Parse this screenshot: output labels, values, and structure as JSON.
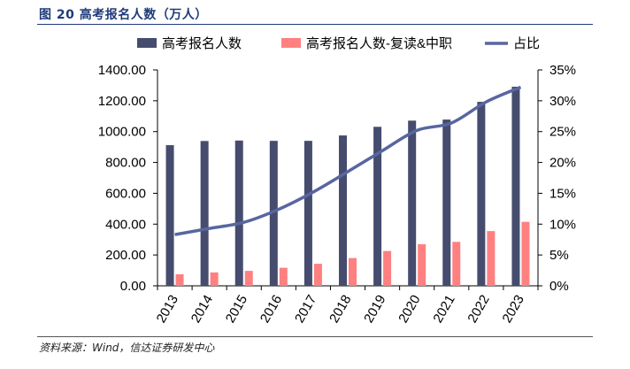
{
  "figure": {
    "label": "图 20",
    "title": "高考报名人数（万人）"
  },
  "source": "资料来源：Wind，信达证券研发中心",
  "colors": {
    "bar_primary": "#454c6e",
    "bar_secondary": "#ff8080",
    "line": "#5866a0",
    "axis": "#000000",
    "title": "#1f3b7a"
  },
  "chart_data": {
    "type": "bar",
    "categories": [
      "2013",
      "2014",
      "2015",
      "2016",
      "2017",
      "2018",
      "2019",
      "2020",
      "2021",
      "2022",
      "2023"
    ],
    "series": [
      {
        "name": "高考报名人数",
        "type": "bar",
        "axis": "left",
        "values": [
          912,
          939,
          942,
          940,
          940,
          975,
          1031,
          1071,
          1078,
          1193,
          1291
        ]
      },
      {
        "name": "高考报名人数-复读&中职",
        "type": "bar",
        "axis": "left",
        "values": [
          75,
          87,
          97,
          117,
          143,
          180,
          226,
          270,
          285,
          355,
          415
        ]
      },
      {
        "name": "占比",
        "type": "line",
        "axis": "right",
        "values": [
          0.083,
          0.093,
          0.103,
          0.124,
          0.152,
          0.185,
          0.219,
          0.252,
          0.264,
          0.298,
          0.322
        ]
      }
    ],
    "y_left": {
      "ylim": [
        0,
        1400
      ],
      "ticks": [
        "0.00",
        "200.00",
        "400.00",
        "600.00",
        "800.00",
        "1000.00",
        "1200.00",
        "1400.00"
      ]
    },
    "y_right": {
      "ylim": [
        0,
        0.35
      ],
      "ticks": [
        "0%",
        "5%",
        "10%",
        "15%",
        "20%",
        "25%",
        "30%",
        "35%"
      ]
    },
    "legend_position": "top",
    "grid": false
  }
}
